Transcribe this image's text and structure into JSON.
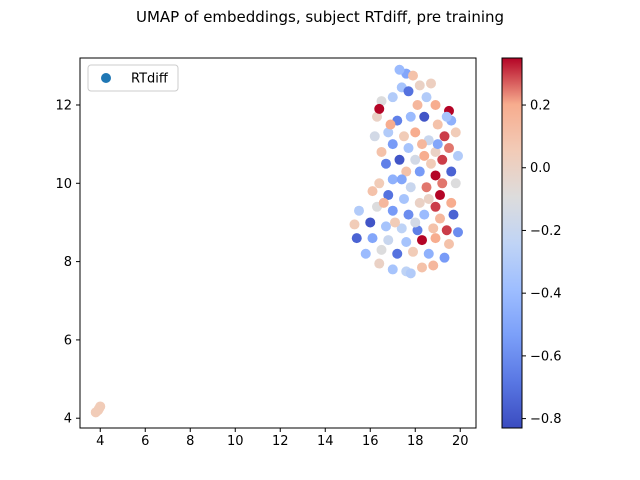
{
  "chart_data": {
    "type": "scatter",
    "title": "UMAP of embeddings, subject RTdiff, pre training",
    "xlabel": "",
    "ylabel": "",
    "xlim": [
      3.1,
      20.7
    ],
    "ylim": [
      3.75,
      13.2
    ],
    "xticks": [
      4,
      6,
      8,
      10,
      12,
      14,
      16,
      18,
      20
    ],
    "yticks": [
      4,
      6,
      8,
      10,
      12
    ],
    "xtick_labels": [
      "4",
      "6",
      "8",
      "10",
      "12",
      "14",
      "16",
      "18",
      "20"
    ],
    "ytick_labels": [
      "4",
      "6",
      "8",
      "10",
      "12"
    ],
    "grid": false,
    "legend": {
      "position": "top-left",
      "entries": [
        {
          "label": "RTdiff",
          "color": "#1f77b4"
        }
      ]
    },
    "colorbar": {
      "cmap": "coolwarm",
      "range": [
        -0.83,
        0.35
      ],
      "ticks": [
        0.2,
        0.0,
        -0.2,
        -0.4,
        -0.6,
        -0.8
      ],
      "tick_labels": [
        "0.2",
        "0.0",
        "−0.2",
        "−0.4",
        "−0.6",
        "−0.8"
      ]
    },
    "series": [
      {
        "name": "RTdiff",
        "points": [
          {
            "x": 3.9,
            "y": 4.2,
            "c": 0.05
          },
          {
            "x": 3.8,
            "y": 4.15,
            "c": 0.05
          },
          {
            "x": 4.0,
            "y": 4.3,
            "c": 0.05
          },
          {
            "x": 3.95,
            "y": 4.25,
            "c": 0.05
          },
          {
            "x": 17.6,
            "y": 12.8,
            "c": -0.5
          },
          {
            "x": 17.9,
            "y": 12.75,
            "c": 0.1
          },
          {
            "x": 18.2,
            "y": 12.5,
            "c": 0.0
          },
          {
            "x": 18.7,
            "y": 12.55,
            "c": 0.02
          },
          {
            "x": 17.4,
            "y": 12.45,
            "c": -0.35
          },
          {
            "x": 16.5,
            "y": 12.1,
            "c": -0.1
          },
          {
            "x": 17.0,
            "y": 12.2,
            "c": -0.3
          },
          {
            "x": 17.7,
            "y": 12.35,
            "c": -0.7
          },
          {
            "x": 18.1,
            "y": 12.0,
            "c": 0.15
          },
          {
            "x": 18.9,
            "y": 12.0,
            "c": 0.2
          },
          {
            "x": 19.5,
            "y": 11.85,
            "c": 0.35
          },
          {
            "x": 16.3,
            "y": 11.7,
            "c": 0.0
          },
          {
            "x": 16.4,
            "y": 11.9,
            "c": 0.35
          },
          {
            "x": 17.2,
            "y": 11.6,
            "c": -0.65
          },
          {
            "x": 17.8,
            "y": 11.7,
            "c": -0.4
          },
          {
            "x": 18.4,
            "y": 11.7,
            "c": -0.8
          },
          {
            "x": 19.0,
            "y": 11.5,
            "c": 0.1
          },
          {
            "x": 19.6,
            "y": 11.6,
            "c": -0.45
          },
          {
            "x": 16.8,
            "y": 11.3,
            "c": -0.3
          },
          {
            "x": 17.5,
            "y": 11.2,
            "c": 0.05
          },
          {
            "x": 18.0,
            "y": 11.3,
            "c": 0.2
          },
          {
            "x": 18.6,
            "y": 11.1,
            "c": -0.2
          },
          {
            "x": 19.3,
            "y": 11.2,
            "c": 0.3
          },
          {
            "x": 19.8,
            "y": 11.3,
            "c": 0.05
          },
          {
            "x": 17.0,
            "y": 11.0,
            "c": -0.55
          },
          {
            "x": 17.7,
            "y": 10.9,
            "c": -0.35
          },
          {
            "x": 18.3,
            "y": 11.0,
            "c": 0.15
          },
          {
            "x": 18.9,
            "y": 10.8,
            "c": 0.0
          },
          {
            "x": 19.5,
            "y": 10.9,
            "c": 0.25
          },
          {
            "x": 16.5,
            "y": 10.8,
            "c": 0.1
          },
          {
            "x": 17.3,
            "y": 10.6,
            "c": -0.8
          },
          {
            "x": 18.0,
            "y": 10.6,
            "c": -0.15
          },
          {
            "x": 18.7,
            "y": 10.5,
            "c": 0.05
          },
          {
            "x": 19.2,
            "y": 10.6,
            "c": 0.3
          },
          {
            "x": 19.9,
            "y": 10.7,
            "c": -0.3
          },
          {
            "x": 16.7,
            "y": 10.5,
            "c": -0.65
          },
          {
            "x": 17.6,
            "y": 10.3,
            "c": 0.1
          },
          {
            "x": 18.2,
            "y": 10.3,
            "c": -0.55
          },
          {
            "x": 18.9,
            "y": 10.2,
            "c": 0.35
          },
          {
            "x": 19.6,
            "y": 10.3,
            "c": -0.75
          },
          {
            "x": 16.4,
            "y": 10.0,
            "c": 0.05
          },
          {
            "x": 17.0,
            "y": 10.1,
            "c": -0.45
          },
          {
            "x": 17.8,
            "y": 9.9,
            "c": -0.2
          },
          {
            "x": 18.5,
            "y": 9.9,
            "c": 0.25
          },
          {
            "x": 19.1,
            "y": 9.7,
            "c": 0.35
          },
          {
            "x": 19.8,
            "y": 10.0,
            "c": -0.1
          },
          {
            "x": 16.1,
            "y": 9.8,
            "c": 0.1
          },
          {
            "x": 16.8,
            "y": 9.7,
            "c": -0.7
          },
          {
            "x": 17.5,
            "y": 9.6,
            "c": -0.35
          },
          {
            "x": 18.2,
            "y": 9.5,
            "c": 0.0
          },
          {
            "x": 18.9,
            "y": 9.4,
            "c": 0.3
          },
          {
            "x": 19.6,
            "y": 9.5,
            "c": 0.2
          },
          {
            "x": 15.5,
            "y": 9.3,
            "c": -0.3
          },
          {
            "x": 16.3,
            "y": 9.4,
            "c": -0.1
          },
          {
            "x": 17.0,
            "y": 9.3,
            "c": -0.55
          },
          {
            "x": 17.7,
            "y": 9.2,
            "c": -0.6
          },
          {
            "x": 18.4,
            "y": 9.2,
            "c": -0.4
          },
          {
            "x": 19.1,
            "y": 9.1,
            "c": 0.15
          },
          {
            "x": 19.7,
            "y": 9.2,
            "c": -0.75
          },
          {
            "x": 15.3,
            "y": 8.95,
            "c": 0.05
          },
          {
            "x": 16.0,
            "y": 9.0,
            "c": -0.8
          },
          {
            "x": 16.7,
            "y": 8.9,
            "c": -0.35
          },
          {
            "x": 17.4,
            "y": 8.85,
            "c": -0.25
          },
          {
            "x": 18.1,
            "y": 8.8,
            "c": -0.65
          },
          {
            "x": 18.8,
            "y": 8.85,
            "c": 0.1
          },
          {
            "x": 19.4,
            "y": 8.8,
            "c": 0.3
          },
          {
            "x": 19.9,
            "y": 8.75,
            "c": -0.6
          },
          {
            "x": 15.4,
            "y": 8.6,
            "c": -0.75
          },
          {
            "x": 16.1,
            "y": 8.6,
            "c": -0.5
          },
          {
            "x": 16.8,
            "y": 8.55,
            "c": -0.2
          },
          {
            "x": 17.6,
            "y": 8.5,
            "c": -0.35
          },
          {
            "x": 18.3,
            "y": 8.55,
            "c": 0.35
          },
          {
            "x": 18.9,
            "y": 8.6,
            "c": 0.2
          },
          {
            "x": 19.5,
            "y": 8.45,
            "c": 0.1
          },
          {
            "x": 15.8,
            "y": 8.2,
            "c": -0.4
          },
          {
            "x": 16.5,
            "y": 8.3,
            "c": -0.1
          },
          {
            "x": 17.2,
            "y": 8.2,
            "c": -0.7
          },
          {
            "x": 17.9,
            "y": 8.25,
            "c": 0.05
          },
          {
            "x": 18.6,
            "y": 8.2,
            "c": -0.45
          },
          {
            "x": 19.3,
            "y": 8.1,
            "c": -0.55
          },
          {
            "x": 16.4,
            "y": 7.95,
            "c": 0.0
          },
          {
            "x": 17.0,
            "y": 7.8,
            "c": -0.35
          },
          {
            "x": 17.6,
            "y": 7.75,
            "c": -0.25
          },
          {
            "x": 18.3,
            "y": 7.85,
            "c": 0.1
          },
          {
            "x": 18.8,
            "y": 7.9,
            "c": 0.15
          },
          {
            "x": 17.8,
            "y": 7.7,
            "c": -0.3
          },
          {
            "x": 16.2,
            "y": 11.2,
            "c": -0.15
          },
          {
            "x": 16.9,
            "y": 11.5,
            "c": 0.2
          },
          {
            "x": 18.5,
            "y": 12.2,
            "c": -0.3
          },
          {
            "x": 17.3,
            "y": 12.9,
            "c": -0.4
          },
          {
            "x": 19.0,
            "y": 11.0,
            "c": -0.5
          },
          {
            "x": 16.6,
            "y": 9.5,
            "c": 0.15
          },
          {
            "x": 17.1,
            "y": 9.0,
            "c": 0.05
          },
          {
            "x": 18.0,
            "y": 9.0,
            "c": -0.15
          },
          {
            "x": 18.6,
            "y": 9.6,
            "c": 0.0
          },
          {
            "x": 19.2,
            "y": 10.0,
            "c": 0.25
          },
          {
            "x": 17.4,
            "y": 10.1,
            "c": -0.5
          },
          {
            "x": 18.4,
            "y": 10.7,
            "c": 0.2
          },
          {
            "x": 19.4,
            "y": 11.7,
            "c": -0.35
          }
        ]
      }
    ]
  }
}
